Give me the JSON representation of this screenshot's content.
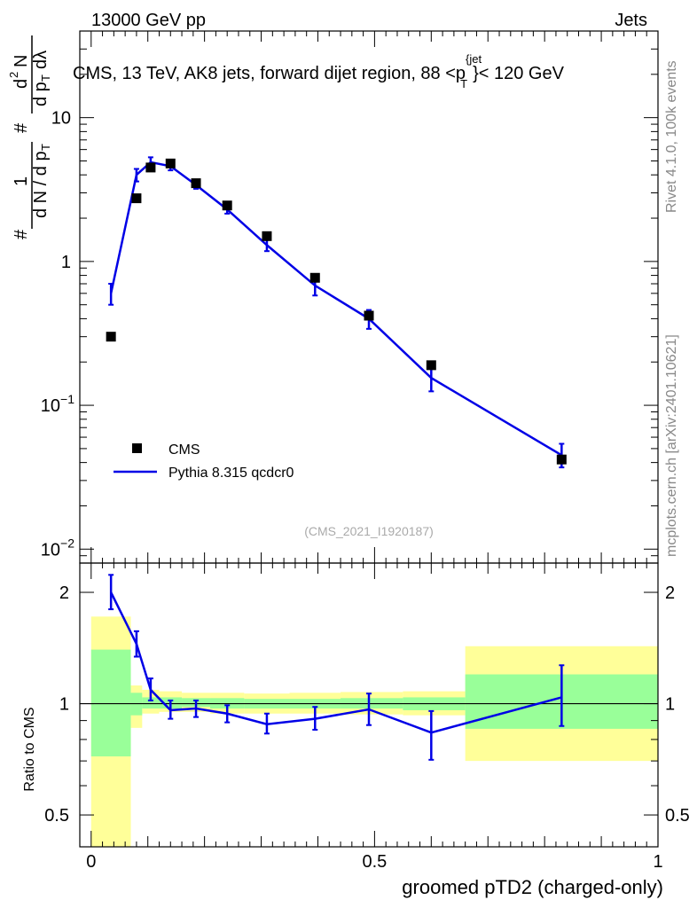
{
  "header": {
    "energy_label": "13000 GeV pp",
    "category_label": "Jets"
  },
  "side_labels": {
    "rivet": "Rivet 4.1.0,  100k events",
    "mcplots": "mcplots.cern.ch [arXiv:2401.10621]"
  },
  "chart_data": [
    {
      "type": "scatter",
      "scale": "log",
      "title_parts": {
        "prefix": "CMS, 13 TeV, AK8 jets, forward dijet region, 88 <p",
        "superscript": "{jet",
        "subscript": "T",
        "suffix": "}< 120 GeV"
      },
      "ylabel": "1/dN/dpT d²N/dpT dλ",
      "ylim": [
        0.008,
        40
      ],
      "y_ticks": [
        {
          "value": 0.01,
          "label_base": "10",
          "label_exp": "−2"
        },
        {
          "value": 0.1,
          "label_base": "10",
          "label_exp": "−1"
        },
        {
          "value": 1,
          "label_base": "1",
          "label_exp": ""
        },
        {
          "value": 10,
          "label_base": "10",
          "label_exp": ""
        }
      ],
      "watermark": "(CMS_2021_I1920187)",
      "legend": {
        "position": "bottom-left",
        "entries": [
          {
            "label": "CMS",
            "color": "#000000",
            "marker": "square"
          },
          {
            "label": "Pythia 8.315 qcdcr0",
            "color": "#0000e6",
            "marker": "line"
          }
        ]
      },
      "series": [
        {
          "name": "CMS",
          "x": [
            0.035,
            0.08,
            0.105,
            0.14,
            0.185,
            0.24,
            0.31,
            0.395,
            0.49,
            0.6,
            0.83
          ],
          "values": [
            0.3,
            2.75,
            4.5,
            4.8,
            3.5,
            2.45,
            1.5,
            0.77,
            0.42,
            0.19,
            0.042
          ]
        },
        {
          "name": "Pythia 8.315 qcdcr0",
          "x": [
            0.035,
            0.08,
            0.105,
            0.14,
            0.185,
            0.24,
            0.31,
            0.395,
            0.49,
            0.6,
            0.83
          ],
          "values": [
            0.6,
            4.0,
            4.9,
            4.6,
            3.4,
            2.3,
            1.3,
            0.68,
            0.4,
            0.155,
            0.045
          ],
          "err_up": [
            0.1,
            0.4,
            0.4,
            0.3,
            0.2,
            0.15,
            0.12,
            0.1,
            0.06,
            0.04,
            0.009
          ],
          "err_down": [
            0.1,
            0.4,
            0.4,
            0.3,
            0.2,
            0.15,
            0.12,
            0.1,
            0.06,
            0.03,
            0.008
          ]
        }
      ]
    },
    {
      "type": "line",
      "scale": "log",
      "ylabel": "Ratio to CMS",
      "xlabel": "groomed pTD2 (charged-only)",
      "xlim": [
        -0.02,
        1.0
      ],
      "ylim": [
        0.41,
        2.4
      ],
      "x_ticks": [
        {
          "value": 0,
          "label": "0"
        },
        {
          "value": 0.5,
          "label": "0.5"
        },
        {
          "value": 1,
          "label": "1"
        }
      ],
      "y_ticks": [
        {
          "value": 0.5,
          "label": "0.5"
        },
        {
          "value": 1,
          "label": "1"
        },
        {
          "value": 2,
          "label": "2"
        }
      ],
      "bands": [
        {
          "x0": 0.0,
          "x1": 0.07,
          "yel": [
            0.4,
            1.72
          ],
          "grn": [
            0.72,
            1.4
          ]
        },
        {
          "x0": 0.07,
          "x1": 0.09,
          "yel": [
            0.86,
            1.12
          ],
          "grn": [
            0.93,
            1.07
          ]
        },
        {
          "x0": 0.09,
          "x1": 0.12,
          "yel": [
            0.94,
            1.09
          ],
          "grn": [
            0.97,
            1.04
          ]
        },
        {
          "x0": 0.12,
          "x1": 0.16,
          "yel": [
            0.95,
            1.08
          ],
          "grn": [
            0.97,
            1.04
          ]
        },
        {
          "x0": 0.16,
          "x1": 0.21,
          "yel": [
            0.95,
            1.07
          ],
          "grn": [
            0.98,
            1.035
          ]
        },
        {
          "x0": 0.21,
          "x1": 0.27,
          "yel": [
            0.94,
            1.07
          ],
          "grn": [
            0.97,
            1.035
          ]
        },
        {
          "x0": 0.27,
          "x1": 0.35,
          "yel": [
            0.94,
            1.065
          ],
          "grn": [
            0.97,
            1.03
          ]
        },
        {
          "x0": 0.35,
          "x1": 0.44,
          "yel": [
            0.94,
            1.07
          ],
          "grn": [
            0.97,
            1.03
          ]
        },
        {
          "x0": 0.44,
          "x1": 0.55,
          "yel": [
            0.935,
            1.075
          ],
          "grn": [
            0.97,
            1.035
          ]
        },
        {
          "x0": 0.55,
          "x1": 0.66,
          "yel": [
            0.93,
            1.08
          ],
          "grn": [
            0.96,
            1.04
          ]
        },
        {
          "x0": 0.66,
          "x1": 1.0,
          "yel": [
            0.7,
            1.43
          ],
          "grn": [
            0.855,
            1.2
          ]
        }
      ],
      "series": [
        {
          "name": "Pythia 8.315 qcdcr0 / CMS",
          "x": [
            0.035,
            0.08,
            0.105,
            0.14,
            0.185,
            0.24,
            0.31,
            0.395,
            0.49,
            0.6,
            0.83
          ],
          "values": [
            2.0,
            1.45,
            1.09,
            0.96,
            0.97,
            0.94,
            0.88,
            0.91,
            0.965,
            0.835,
            1.04
          ],
          "err_up": [
            0.23,
            0.12,
            0.08,
            0.06,
            0.05,
            0.05,
            0.06,
            0.07,
            0.1,
            0.12,
            0.23
          ],
          "err_down": [
            0.2,
            0.11,
            0.07,
            0.05,
            0.05,
            0.05,
            0.05,
            0.06,
            0.09,
            0.13,
            0.17
          ]
        }
      ],
      "reference_line": 1
    }
  ]
}
